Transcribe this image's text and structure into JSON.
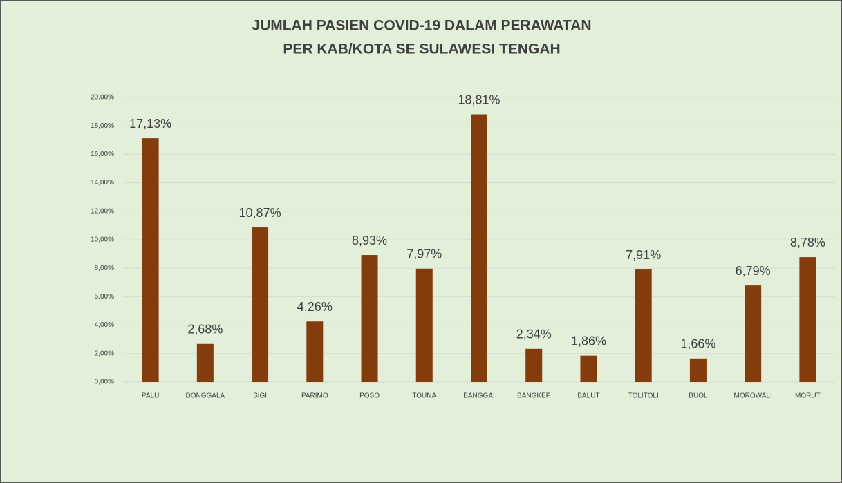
{
  "chart_data": {
    "type": "bar",
    "title": [
      "JUMLAH PASIEN COVID-19 DALAM PERAWATAN",
      "PER KAB/KOTA SE SULAWESI TENGAH"
    ],
    "categories": [
      "PALU",
      "DONGGALA",
      "SIGI",
      "PARIMO",
      "POSO",
      "TOUNA",
      "BANGGAI",
      "BANGKEP",
      "BALUT",
      "TOLITOLI",
      "BUOL",
      "MOROWALI",
      "MORUT"
    ],
    "values": [
      17.13,
      2.68,
      10.87,
      4.26,
      8.93,
      7.97,
      18.81,
      2.34,
      1.86,
      7.91,
      1.66,
      6.79,
      8.78
    ],
    "value_labels": [
      "17,13%",
      "2,68%",
      "10,87%",
      "4,26%",
      "8,93%",
      "7,97%",
      "18,81%",
      "2,34%",
      "1,86%",
      "7,91%",
      "1,66%",
      "6,79%",
      "8,78%"
    ],
    "color": "#843c0c",
    "ylim": [
      0,
      20
    ],
    "yticks": [
      {
        "value": 0,
        "label": "0,00%"
      },
      {
        "value": 2,
        "label": "2,00%"
      },
      {
        "value": 4,
        "label": "4,00%"
      },
      {
        "value": 6,
        "label": "6,00%"
      },
      {
        "value": 8,
        "label": "8,00%"
      },
      {
        "value": 10,
        "label": "10,00%"
      },
      {
        "value": 12,
        "label": "12,00%"
      },
      {
        "value": 14,
        "label": "14,00%"
      },
      {
        "value": 16,
        "label": "16,00%"
      },
      {
        "value": 18,
        "label": "18,00%"
      },
      {
        "value": 20,
        "label": "20,00%"
      }
    ],
    "grid": true
  }
}
